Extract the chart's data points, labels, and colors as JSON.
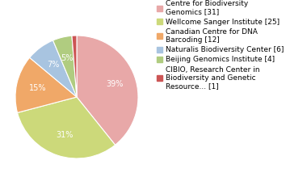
{
  "labels": [
    "Centre for Biodiversity\nGenomics [31]",
    "Wellcome Sanger Institute [25]",
    "Canadian Centre for DNA\nBarcoding [12]",
    "Naturalis Biodiversity Center [6]",
    "Beijing Genomics Institute [4]",
    "CIBIO, Research Center in\nBiodiversity and Genetic\nResource... [1]"
  ],
  "values": [
    31,
    25,
    12,
    6,
    4,
    1
  ],
  "colors": [
    "#e8a8a8",
    "#ccd97a",
    "#f0a868",
    "#a8c4e0",
    "#b0cc80",
    "#cc5555"
  ],
  "pct_labels": [
    "39%",
    "31%",
    "15%",
    "7%",
    "5%",
    "1%"
  ],
  "legend_labels": [
    "Centre for Biodiversity\nGenomics [31]",
    "Wellcome Sanger Institute [25]",
    "Canadian Centre for DNA\nBarcoding [12]",
    "Naturalis Biodiversity Center [6]",
    "Beijing Genomics Institute [4]",
    "CIBIO, Research Center in\nBiodiversity and Genetic\nResource... [1]"
  ],
  "startangle": 90,
  "counterclock": false,
  "background_color": "#ffffff",
  "pct_color": "white",
  "pct_fontsize": 7,
  "legend_fontsize": 6.5
}
